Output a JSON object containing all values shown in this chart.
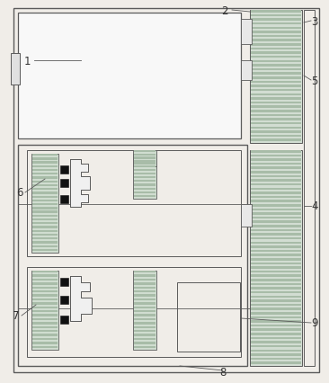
{
  "bg_color": "#f0ede8",
  "line_color": "#5a5a5a",
  "stripe_color_gear": "#aabcaa",
  "bg_gear": "#d0ddd0",
  "stripe_dark": "#888888",
  "black": "#111111",
  "white_fill": "#f8f8f8",
  "label_color": "#333333"
}
